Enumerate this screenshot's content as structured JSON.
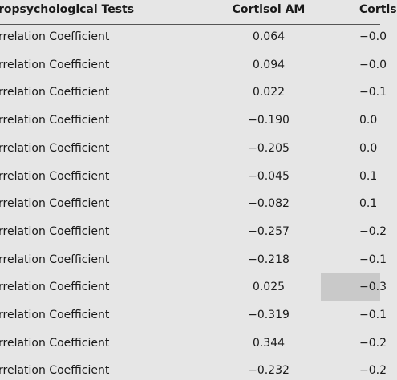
{
  "table": {
    "header": [
      "ropsychological Tests",
      "Cortisol AM",
      "Cortis"
    ],
    "rows": [
      [
        "rrelation Coefficient",
        "0.064",
        "−0.0"
      ],
      [
        "rrelation Coefficient",
        "0.094",
        "−0.0"
      ],
      [
        "rrelation Coefficient",
        "0.022",
        "−0.1"
      ],
      [
        "rrelation Coefficient",
        "−0.190",
        "0.0"
      ],
      [
        "rrelation Coefficient",
        "−0.205",
        "0.0"
      ],
      [
        "rrelation Coefficient",
        "−0.045",
        "0.1"
      ],
      [
        "rrelation Coefficient",
        "−0.082",
        "0.1"
      ],
      [
        "rrelation Coefficient",
        "−0.257",
        "−0.2"
      ],
      [
        "rrelation Coefficient",
        "−0.218",
        "−0.1"
      ],
      [
        "rrelation Coefficient",
        "0.025",
        "−0.3"
      ],
      [
        "rrelation Coefficient",
        "−0.319",
        "−0.1"
      ],
      [
        "rrelation Coefficient",
        "0.344",
        "−0.2"
      ],
      [
        "rrelation Coefficient",
        "−0.232",
        "−0.2"
      ]
    ]
  }
}
